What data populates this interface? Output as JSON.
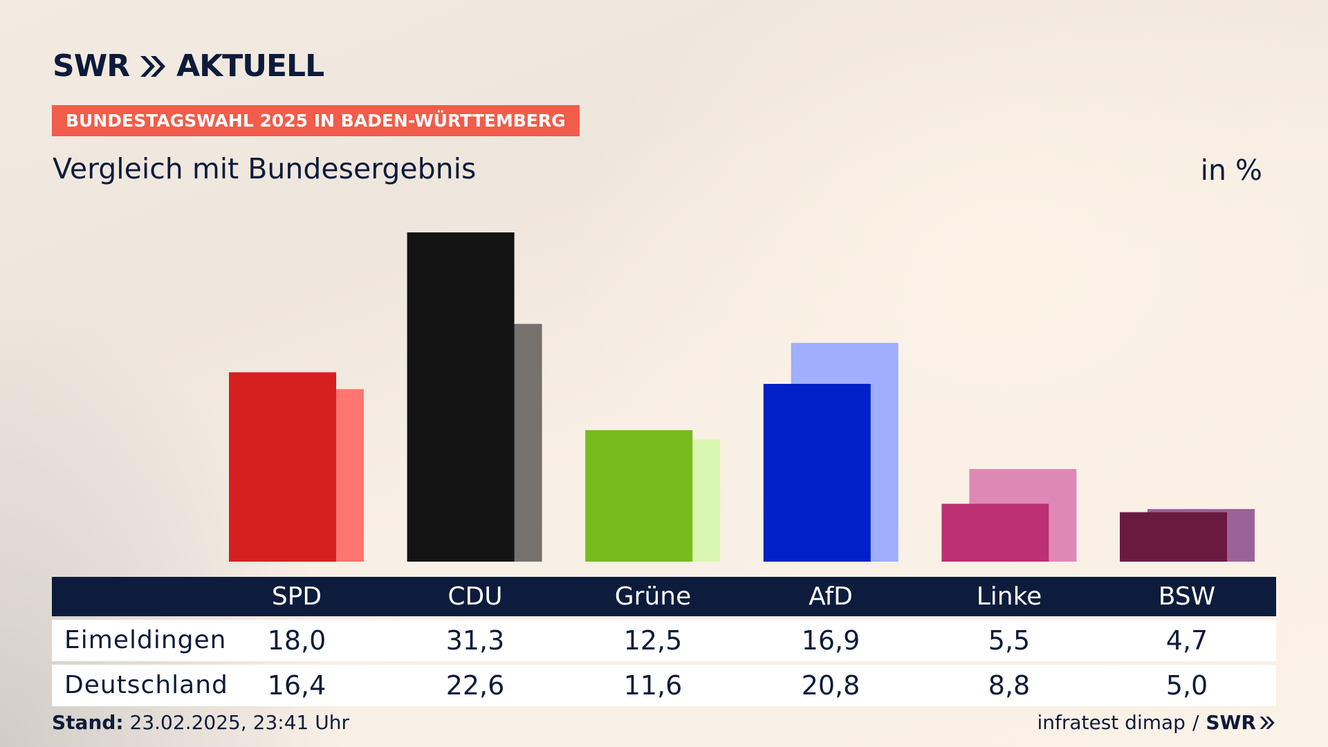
{
  "header": {
    "logo_text": "SWR",
    "logo_suffix": "AKTUELL",
    "badge": "BUNDESTAGSWAHL 2025 IN BADEN-WÜRTTEMBERG",
    "subtitle": "Vergleich mit Bundesergebnis",
    "unit": "in %"
  },
  "colors": {
    "navy": "#0d1c3c",
    "badge": "#f25c4a"
  },
  "chart_data": {
    "type": "bar",
    "categories": [
      "SPD",
      "CDU",
      "Grüne",
      "AfD",
      "Linke",
      "BSW"
    ],
    "series": [
      {
        "name": "Eimeldingen",
        "values": [
          18.0,
          31.3,
          12.5,
          16.9,
          5.5,
          4.7
        ],
        "colors": [
          "#d6201f",
          "#141414",
          "#78bb1d",
          "#0020c8",
          "#bd3073",
          "#6b1a3f"
        ]
      },
      {
        "name": "Deutschland",
        "values": [
          16.4,
          22.6,
          11.6,
          20.8,
          8.8,
          5.0
        ],
        "colors": [
          "#ff7570",
          "#74716f",
          "#d9f7b0",
          "#9faeff",
          "#de88b5",
          "#9b6299"
        ]
      }
    ],
    "ylim": [
      0,
      31.3
    ],
    "grid": false,
    "legend": "table-below"
  },
  "table": {
    "headers": [
      "SPD",
      "CDU",
      "Grüne",
      "AfD",
      "Linke",
      "BSW"
    ],
    "rows": [
      {
        "label": "Eimeldingen",
        "values": [
          "18,0",
          "31,3",
          "12,5",
          "16,9",
          "5,5",
          "4,7"
        ]
      },
      {
        "label": "Deutschland",
        "values": [
          "16,4",
          "22,6",
          "11,6",
          "20,8",
          "8,8",
          "5,0"
        ]
      }
    ]
  },
  "footer": {
    "stand_label": "Stand:",
    "stand_value": "23.02.2025, 23:41 Uhr",
    "source": "infratest dimap",
    "separator": "/",
    "source_logo": "SWR"
  }
}
